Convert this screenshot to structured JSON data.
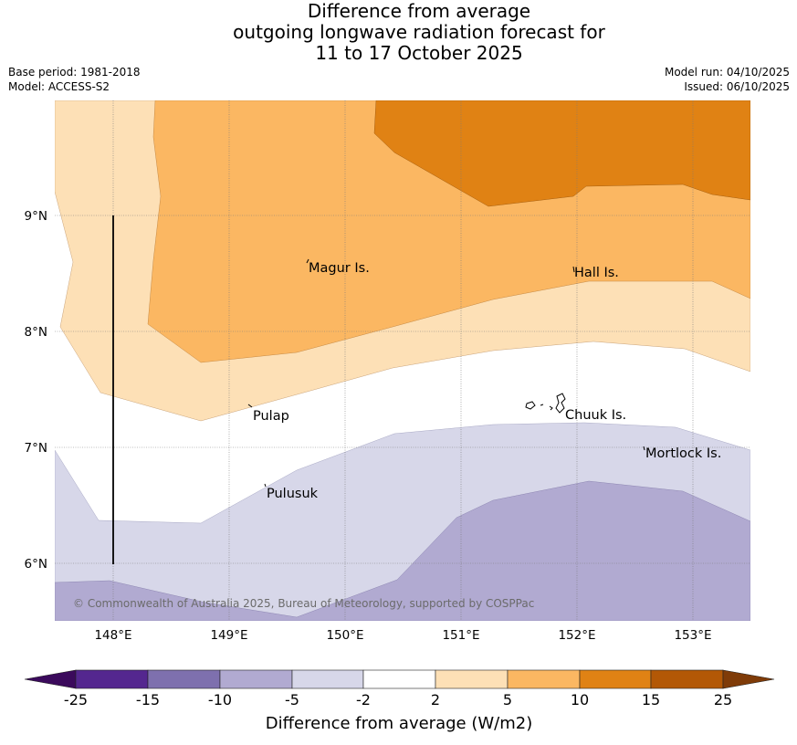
{
  "title": {
    "line1": "Difference from average",
    "line2": "outgoing longwave radiation forecast for",
    "line3": "11 to 17 October 2025"
  },
  "meta": {
    "base_period": "Base period: 1981-2018",
    "model": "Model: ACCESS-S2",
    "model_run": "Model run: 04/10/2025",
    "issued": "Issued: 06/10/2025"
  },
  "map": {
    "lon_labels": [
      "148°E",
      "149°E",
      "150°E",
      "151°E",
      "152°E",
      "153°E"
    ],
    "lat_labels": [
      "9°N",
      "8°N",
      "7°N",
      "6°N"
    ],
    "places": {
      "magur": "Magur Is.",
      "hall": "Hall Is.",
      "pulap": "Pulap",
      "chuuk": "Chuuk Is.",
      "mortlock": "Mortlock Is.",
      "pulusuk": "Pulusuk"
    },
    "copyright": "© Commonwealth of Australia 2025, Bureau of Meteorology, supported by COSPPac"
  },
  "colorbar": {
    "title": "Difference from average (W/m2)",
    "ticks": [
      "-25",
      "-15",
      "-10",
      "-5",
      "-2",
      "2",
      "5",
      "10",
      "15",
      "25"
    ],
    "colors": {
      "below_-25": "#3b0a5c",
      "-25_-15": "#54278f",
      "-15_-10": "#7e70ae",
      "-10_-5": "#b1aad1",
      "-5_-2": "#d7d7e9",
      "-2_2": "#ffffff",
      "2_5": "#fde0b6",
      "5_10": "#fbb762",
      "10_15": "#e08214",
      "15_25": "#b35806",
      "above_25": "#7f3b08"
    }
  }
}
